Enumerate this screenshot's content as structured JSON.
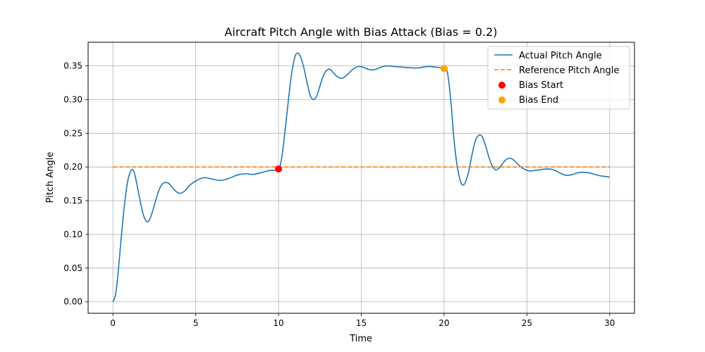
{
  "chart_data": {
    "type": "line",
    "title": "Aircraft Pitch Angle with Bias Attack (Bias = 0.2)",
    "xlabel": "Time",
    "ylabel": "Pitch Angle",
    "xlim": [
      -1.5,
      31.5
    ],
    "ylim": [
      -0.017,
      0.385
    ],
    "xticks": [
      0,
      5,
      10,
      15,
      20,
      25,
      30
    ],
    "yticks": [
      0.0,
      0.05,
      0.1,
      0.15,
      0.2,
      0.25,
      0.3,
      0.35
    ],
    "xtick_labels": [
      "0",
      "5",
      "10",
      "15",
      "20",
      "25",
      "30"
    ],
    "ytick_labels": [
      "0.00",
      "0.05",
      "0.10",
      "0.15",
      "0.20",
      "0.25",
      "0.30",
      "0.35"
    ],
    "grid": true,
    "legend_position": "top-right",
    "series": [
      {
        "name": "Actual Pitch Angle",
        "style": "solid",
        "color": "#1f77b4",
        "x": [
          0,
          0.15,
          0.3,
          0.5,
          0.7,
          0.9,
          1.1,
          1.25,
          1.4,
          1.6,
          1.8,
          2.0,
          2.2,
          2.4,
          2.6,
          2.8,
          3.0,
          3.2,
          3.4,
          3.6,
          3.8,
          4.0,
          4.2,
          4.4,
          4.6,
          4.8,
          5.0,
          5.3,
          5.6,
          6.0,
          6.5,
          7.0,
          7.5,
          8.0,
          8.5,
          9.0,
          9.5,
          10.0,
          10.2,
          10.4,
          10.6,
          10.8,
          11.0,
          11.15,
          11.3,
          11.5,
          11.7,
          11.9,
          12.1,
          12.3,
          12.5,
          12.7,
          12.9,
          13.1,
          13.3,
          13.5,
          13.7,
          13.9,
          14.2,
          14.5,
          14.8,
          15.1,
          15.4,
          15.7,
          16.0,
          16.3,
          16.6,
          17.0,
          17.5,
          18.0,
          18.5,
          19.0,
          19.5,
          20.0,
          20.2,
          20.4,
          20.6,
          20.8,
          21.0,
          21.15,
          21.3,
          21.5,
          21.7,
          21.9,
          22.1,
          22.3,
          22.5,
          22.7,
          22.9,
          23.1,
          23.3,
          23.5,
          23.7,
          23.9,
          24.1,
          24.3,
          24.5,
          24.7,
          24.9,
          25.2,
          25.5,
          25.8,
          26.1,
          26.4,
          26.7,
          27.0,
          27.3,
          27.6,
          27.9,
          28.2,
          28.5,
          28.8,
          29.1,
          29.4,
          29.7,
          30.0
        ],
        "y": [
          0.0,
          0.01,
          0.04,
          0.095,
          0.145,
          0.18,
          0.195,
          0.194,
          0.18,
          0.155,
          0.132,
          0.12,
          0.121,
          0.135,
          0.152,
          0.167,
          0.175,
          0.177,
          0.175,
          0.169,
          0.164,
          0.161,
          0.162,
          0.166,
          0.172,
          0.176,
          0.179,
          0.183,
          0.184,
          0.182,
          0.18,
          0.183,
          0.188,
          0.19,
          0.189,
          0.192,
          0.195,
          0.197,
          0.215,
          0.255,
          0.3,
          0.34,
          0.364,
          0.369,
          0.365,
          0.35,
          0.328,
          0.307,
          0.3,
          0.305,
          0.32,
          0.335,
          0.343,
          0.345,
          0.34,
          0.335,
          0.332,
          0.332,
          0.338,
          0.345,
          0.349,
          0.348,
          0.345,
          0.344,
          0.346,
          0.349,
          0.35,
          0.349,
          0.348,
          0.347,
          0.347,
          0.349,
          0.348,
          0.346,
          0.34,
          0.3,
          0.24,
          0.2,
          0.178,
          0.173,
          0.178,
          0.195,
          0.22,
          0.24,
          0.247,
          0.245,
          0.232,
          0.215,
          0.202,
          0.196,
          0.198,
          0.204,
          0.21,
          0.213,
          0.212,
          0.208,
          0.203,
          0.199,
          0.196,
          0.194,
          0.195,
          0.196,
          0.197,
          0.197,
          0.195,
          0.191,
          0.188,
          0.188,
          0.19,
          0.192,
          0.192,
          0.191,
          0.189,
          0.187,
          0.186,
          0.185
        ]
      },
      {
        "name": "Reference Pitch Angle",
        "style": "dashed",
        "color": "#ff7f0e",
        "x": [
          0,
          30
        ],
        "y": [
          0.2,
          0.2
        ]
      }
    ],
    "markers": [
      {
        "name": "Bias Start",
        "color": "#ff0000",
        "x": 10.0,
        "y": 0.197
      },
      {
        "name": "Bias End",
        "color": "#ffa500",
        "x": 20.0,
        "y": 0.346
      }
    ]
  }
}
